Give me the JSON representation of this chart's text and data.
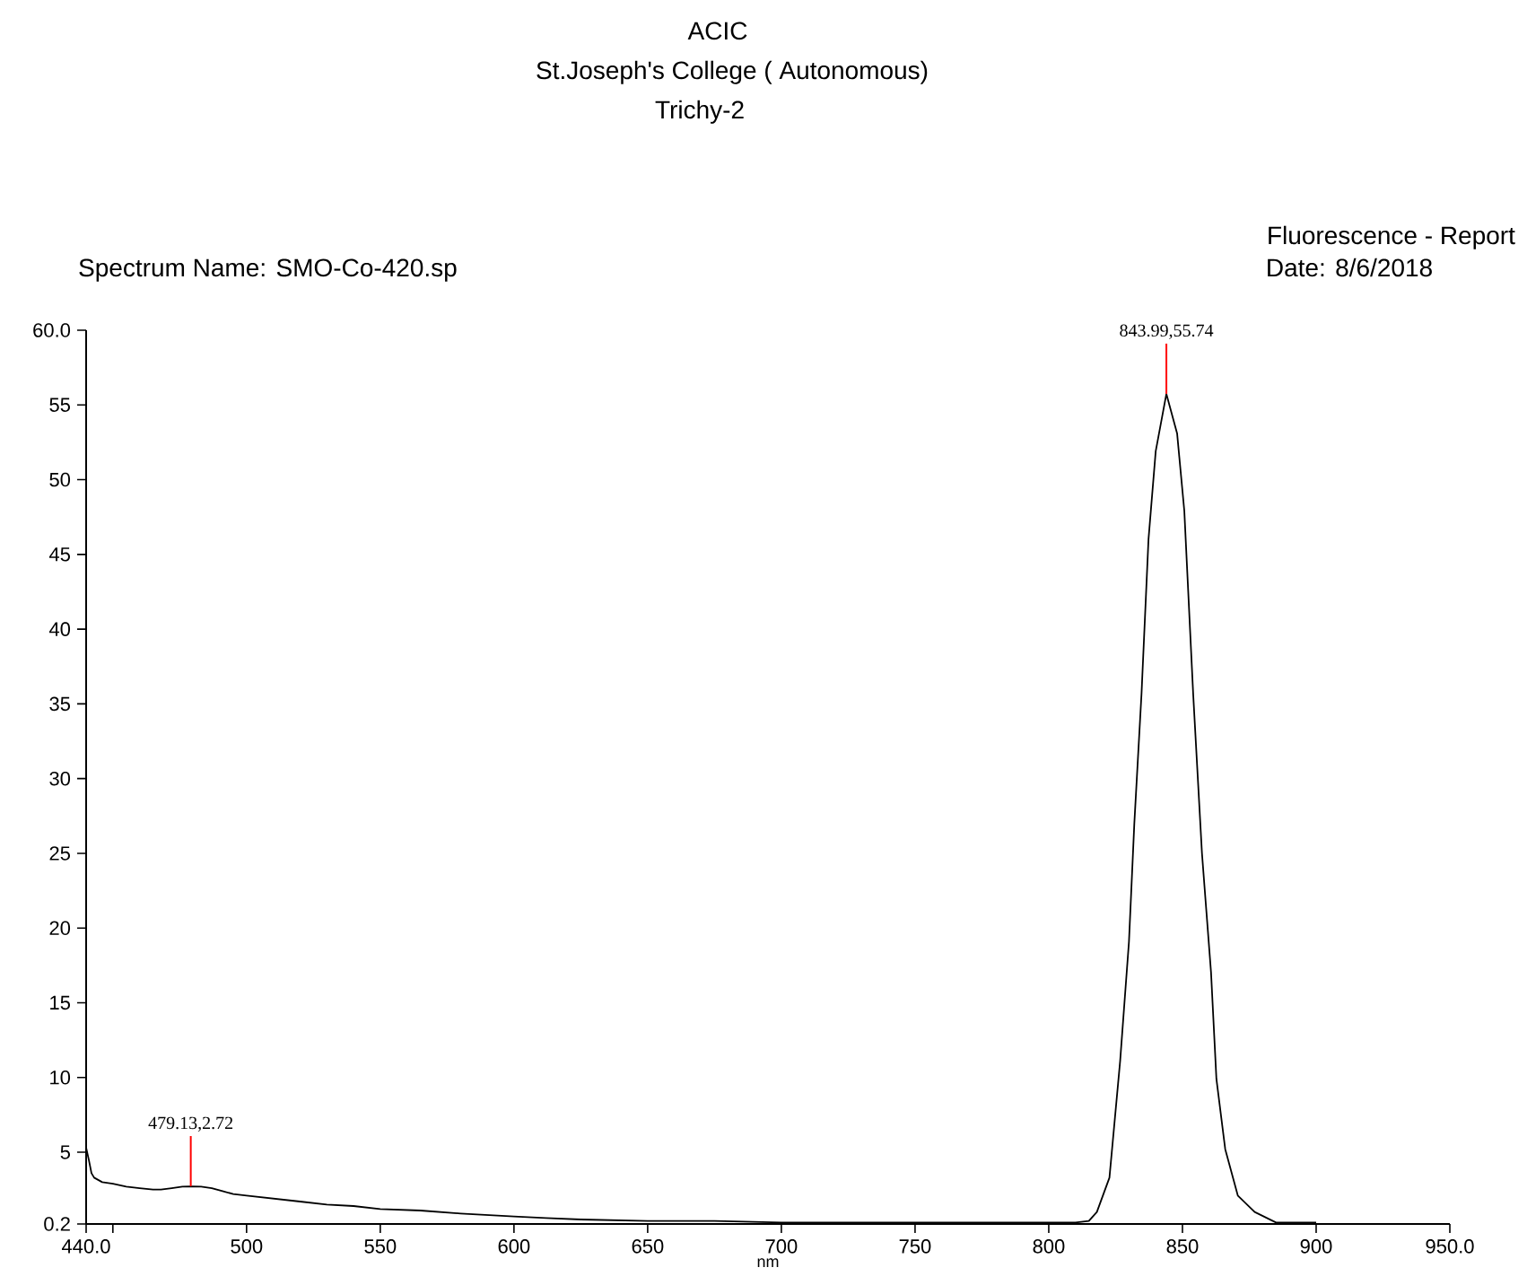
{
  "chart_data": {
    "type": "line",
    "title": "ACIC",
    "subtitle": "St.Joseph's College ( Autonomous)",
    "xlabel": "nm",
    "annotations": [
      "Trichy-2",
      "Spectrum Name: SMO-Co-420.sp",
      "Fluorescence - Report",
      "Date: 8/6/2018",
      {
        "text": "479.13,2.72",
        "x": 479.13,
        "y": 2.72
      },
      {
        "text": "843.99,55.74",
        "x": 843.99,
        "y": 55.74
      }
    ],
    "xlim": [
      440,
      950
    ],
    "xticks": [
      {
        "value": 440,
        "label": "440.0"
      },
      {
        "value": 450,
        "label": null
      },
      500,
      550,
      600,
      650,
      700,
      750,
      800,
      850,
      900,
      {
        "value": 950,
        "label": "950.0"
      }
    ],
    "ylim": [
      0.2,
      60
    ],
    "yticks": [
      {
        "value": 0.2,
        "label": "0.2"
      },
      5,
      10,
      15,
      20,
      25,
      30,
      35,
      40,
      45,
      50,
      55,
      {
        "value": 60,
        "label": "60.0"
      }
    ],
    "series": [
      {
        "color": "#000000",
        "x": [
          440,
          441,
          442,
          443,
          446,
          450,
          455,
          460,
          465,
          468,
          472,
          476,
          479.13,
          483,
          487,
          491,
          495,
          500,
          510,
          520,
          530,
          540,
          550,
          565,
          580,
          600,
          612,
          625,
          650,
          675,
          700,
          705,
          730,
          750,
          780,
          800,
          810,
          815,
          818,
          822.7,
          826.7,
          830,
          832,
          834.7,
          837.3,
          840,
          843.99,
          848,
          850.7,
          854,
          857.3,
          860.7,
          862.7,
          866,
          870.7,
          877,
          885,
          900
        ],
        "values": [
          5.3,
          4.5,
          3.6,
          3.3,
          3.0,
          2.9,
          2.7,
          2.6,
          2.5,
          2.5,
          2.6,
          2.7,
          2.72,
          2.7,
          2.6,
          2.4,
          2.2,
          2.1,
          1.9,
          1.7,
          1.5,
          1.4,
          1.2,
          1.1,
          0.9,
          0.7,
          0.6,
          0.5,
          0.4,
          0.4,
          0.3,
          0.3,
          0.3,
          0.3,
          0.3,
          0.3,
          0.3,
          0.4,
          1.0,
          3.3,
          11.1,
          19.1,
          27.0,
          35.7,
          46.0,
          51.9,
          55.74,
          53.1,
          47.9,
          35.7,
          25.0,
          17.0,
          9.9,
          5.2,
          2.1,
          1.0,
          0.3,
          0.3
        ]
      }
    ]
  }
}
